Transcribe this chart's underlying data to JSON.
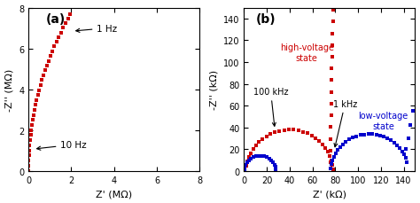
{
  "panel_a": {
    "label": "(a)",
    "xlabel": "Z' (MΩ)",
    "ylabel": "-Z'' (MΩ)",
    "xlim": [
      0,
      8
    ],
    "ylim": [
      0,
      8
    ],
    "xticks": [
      0,
      2,
      4,
      6,
      8
    ],
    "yticks": [
      0,
      2,
      4,
      6,
      8
    ],
    "color": "#cc0000",
    "ann1hz_text": "1 Hz",
    "ann10hz_text": "10 Hz"
  },
  "panel_b": {
    "label": "(b)",
    "xlabel": "Z' (kΩ)",
    "ylabel": "-Z'' (kΩ)",
    "xlim": [
      0,
      150
    ],
    "ylim": [
      0,
      150
    ],
    "xticks": [
      0,
      20,
      40,
      60,
      80,
      100,
      120,
      140
    ],
    "yticks": [
      0,
      20,
      40,
      60,
      80,
      100,
      120,
      140
    ],
    "color_hv": "#cc0000",
    "color_lv": "#0000cc",
    "label_hv": "high-voltage\nstate",
    "label_lv": "low-voltage\nstate",
    "ann100khz_text": "100 kHz",
    "ann1khz_text": "1 kHz"
  },
  "figsize": [
    4.74,
    2.3
  ],
  "dpi": 100
}
